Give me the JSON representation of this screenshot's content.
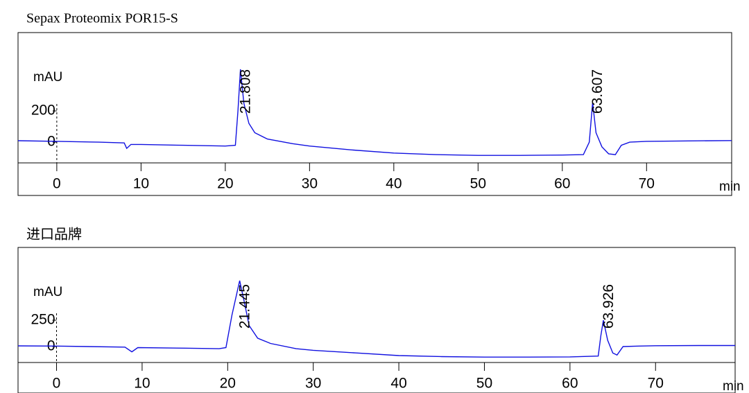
{
  "chart_data": [
    {
      "type": "line",
      "title": "Sepax Proteomix POR15-S",
      "x_label": "min",
      "y_label": "mAU",
      "color": "#1010e0",
      "xlim": [
        -4.6,
        80.1
      ],
      "ylim": [
        -133,
        702
      ],
      "xticks": [
        0,
        10,
        20,
        30,
        40,
        50,
        60,
        70
      ],
      "yticks": [
        0,
        200
      ],
      "x": [
        -4.6,
        0,
        5,
        8,
        8.3,
        8.8,
        10,
        15,
        20,
        21.2,
        21.5,
        21.8,
        22.2,
        22.8,
        23.5,
        25,
        28,
        30,
        35,
        40,
        45,
        50,
        55,
        60,
        62.5,
        63.2,
        63.6,
        64.0,
        64.7,
        65.5,
        66.3,
        67,
        68,
        70,
        75,
        80.1
      ],
      "values": [
        9,
        5,
        0,
        -5,
        -40,
        -15,
        -15,
        -20,
        -25,
        -20,
        200,
        467,
        250,
        120,
        60,
        20,
        -10,
        -25,
        -50,
        -70,
        -80,
        -85,
        -85,
        -83,
        -80,
        0,
        253,
        60,
        -30,
        -75,
        -80,
        -20,
        0,
        5,
        8,
        10
      ],
      "annotations": [
        {
          "text": "21.808",
          "x": 21.808
        },
        {
          "text": "63.607",
          "x": 63.607
        }
      ]
    },
    {
      "type": "line",
      "title": "进口品牌",
      "x_label": "min",
      "y_label": "mAU",
      "color": "#1010e0",
      "xlim": [
        -4.5,
        79.3
      ],
      "ylim": [
        -151,
        940
      ],
      "xticks": [
        0,
        10,
        20,
        30,
        40,
        50,
        60,
        70
      ],
      "yticks": [
        0,
        250
      ],
      "x": [
        -4.5,
        0,
        8,
        8.8,
        9.5,
        15,
        19,
        19.8,
        20.5,
        21.4,
        22,
        22.5,
        23.5,
        25,
        28,
        30,
        35,
        40,
        45,
        50,
        55,
        60,
        63.3,
        63.6,
        63.9,
        64.4,
        65,
        65.5,
        66.2,
        68,
        70,
        75,
        79.3
      ],
      "values": [
        7,
        5,
        -5,
        -50,
        -10,
        -15,
        -20,
        -10,
        300,
        625,
        400,
        200,
        80,
        30,
        -20,
        -35,
        -60,
        -85,
        -95,
        -100,
        -100,
        -98,
        -90,
        100,
        250,
        60,
        -60,
        -80,
        0,
        5,
        8,
        10,
        10
      ],
      "annotations": [
        {
          "text": "21.445",
          "x": 21.445
        },
        {
          "text": "63.926",
          "x": 63.926
        }
      ]
    }
  ]
}
